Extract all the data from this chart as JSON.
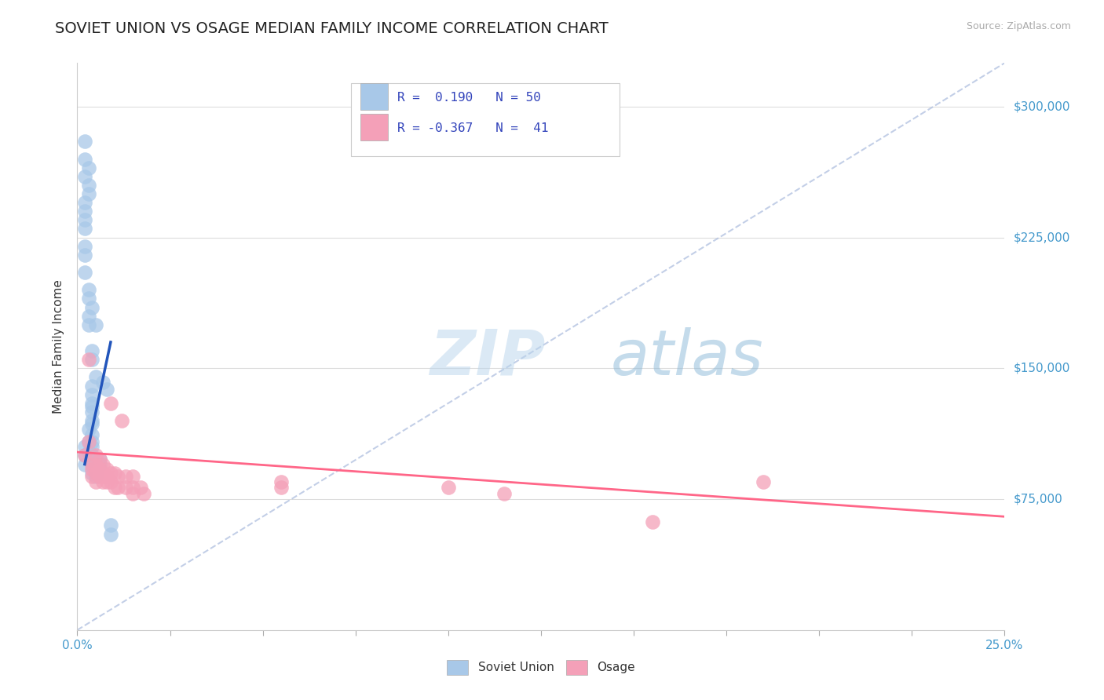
{
  "title": "SOVIET UNION VS OSAGE MEDIAN FAMILY INCOME CORRELATION CHART",
  "source_text": "Source: ZipAtlas.com",
  "ylabel": "Median Family Income",
  "xlim": [
    0.0,
    0.25
  ],
  "ylim": [
    0,
    325000
  ],
  "ytick_labels": [
    "$75,000",
    "$150,000",
    "$225,000",
    "$300,000"
  ],
  "ytick_values": [
    75000,
    150000,
    225000,
    300000
  ],
  "watermark_zip": "ZIP",
  "watermark_atlas": "atlas",
  "blue_color": "#A8C8E8",
  "pink_color": "#F4A0B8",
  "blue_line_color": "#2255BB",
  "pink_line_color": "#FF6688",
  "ref_line_color": "#AABBDD",
  "blue_scatter": [
    [
      0.002,
      100000
    ],
    [
      0.002,
      105000
    ],
    [
      0.002,
      95000
    ],
    [
      0.003,
      108000
    ],
    [
      0.003,
      102000
    ],
    [
      0.003,
      115000
    ],
    [
      0.003,
      175000
    ],
    [
      0.003,
      180000
    ],
    [
      0.004,
      160000
    ],
    [
      0.004,
      155000
    ],
    [
      0.004,
      140000
    ],
    [
      0.004,
      135000
    ],
    [
      0.004,
      130000
    ],
    [
      0.004,
      128000
    ],
    [
      0.004,
      125000
    ],
    [
      0.004,
      120000
    ],
    [
      0.004,
      118000
    ],
    [
      0.004,
      112000
    ],
    [
      0.004,
      108000
    ],
    [
      0.004,
      105000
    ],
    [
      0.004,
      100000
    ],
    [
      0.004,
      98000
    ],
    [
      0.004,
      95000
    ],
    [
      0.004,
      90000
    ],
    [
      0.005,
      145000
    ],
    [
      0.005,
      90000
    ],
    [
      0.005,
      88000
    ],
    [
      0.006,
      98000
    ],
    [
      0.006,
      95000
    ],
    [
      0.007,
      142000
    ],
    [
      0.008,
      138000
    ],
    [
      0.009,
      60000
    ],
    [
      0.009,
      55000
    ],
    [
      0.002,
      260000
    ],
    [
      0.002,
      245000
    ],
    [
      0.002,
      240000
    ],
    [
      0.002,
      235000
    ],
    [
      0.002,
      230000
    ],
    [
      0.002,
      220000
    ],
    [
      0.002,
      215000
    ],
    [
      0.002,
      205000
    ],
    [
      0.003,
      195000
    ],
    [
      0.003,
      190000
    ],
    [
      0.004,
      185000
    ],
    [
      0.005,
      175000
    ],
    [
      0.002,
      280000
    ],
    [
      0.002,
      270000
    ],
    [
      0.003,
      265000
    ],
    [
      0.003,
      255000
    ],
    [
      0.003,
      250000
    ]
  ],
  "pink_scatter": [
    [
      0.002,
      100000
    ],
    [
      0.003,
      108000
    ],
    [
      0.003,
      155000
    ],
    [
      0.004,
      95000
    ],
    [
      0.004,
      92000
    ],
    [
      0.004,
      88000
    ],
    [
      0.005,
      100000
    ],
    [
      0.005,
      95000
    ],
    [
      0.005,
      90000
    ],
    [
      0.005,
      85000
    ],
    [
      0.006,
      98000
    ],
    [
      0.006,
      92000
    ],
    [
      0.006,
      88000
    ],
    [
      0.007,
      95000
    ],
    [
      0.007,
      90000
    ],
    [
      0.007,
      88000
    ],
    [
      0.007,
      85000
    ],
    [
      0.008,
      92000
    ],
    [
      0.008,
      88000
    ],
    [
      0.008,
      85000
    ],
    [
      0.009,
      130000
    ],
    [
      0.009,
      90000
    ],
    [
      0.009,
      85000
    ],
    [
      0.01,
      90000
    ],
    [
      0.01,
      82000
    ],
    [
      0.011,
      88000
    ],
    [
      0.011,
      82000
    ],
    [
      0.012,
      120000
    ],
    [
      0.013,
      88000
    ],
    [
      0.013,
      82000
    ],
    [
      0.015,
      88000
    ],
    [
      0.015,
      82000
    ],
    [
      0.015,
      78000
    ],
    [
      0.017,
      82000
    ],
    [
      0.018,
      78000
    ],
    [
      0.055,
      85000
    ],
    [
      0.055,
      82000
    ],
    [
      0.1,
      82000
    ],
    [
      0.115,
      78000
    ],
    [
      0.155,
      62000
    ],
    [
      0.185,
      85000
    ]
  ],
  "ref_line_x": [
    0.0,
    0.25
  ],
  "ref_line_y": [
    0,
    325000
  ],
  "blue_trend_x": [
    0.002,
    0.009
  ],
  "blue_trend_y": [
    95000,
    165000
  ],
  "pink_trend_x": [
    0.0,
    0.25
  ],
  "pink_trend_y": [
    102000,
    65000
  ],
  "background_color": "#ffffff",
  "grid_color": "#DDDDDD",
  "title_fontsize": 14,
  "axis_label_fontsize": 11,
  "tick_fontsize": 11,
  "ytick_color": "#4499CC",
  "xtick_color": "#4499CC"
}
